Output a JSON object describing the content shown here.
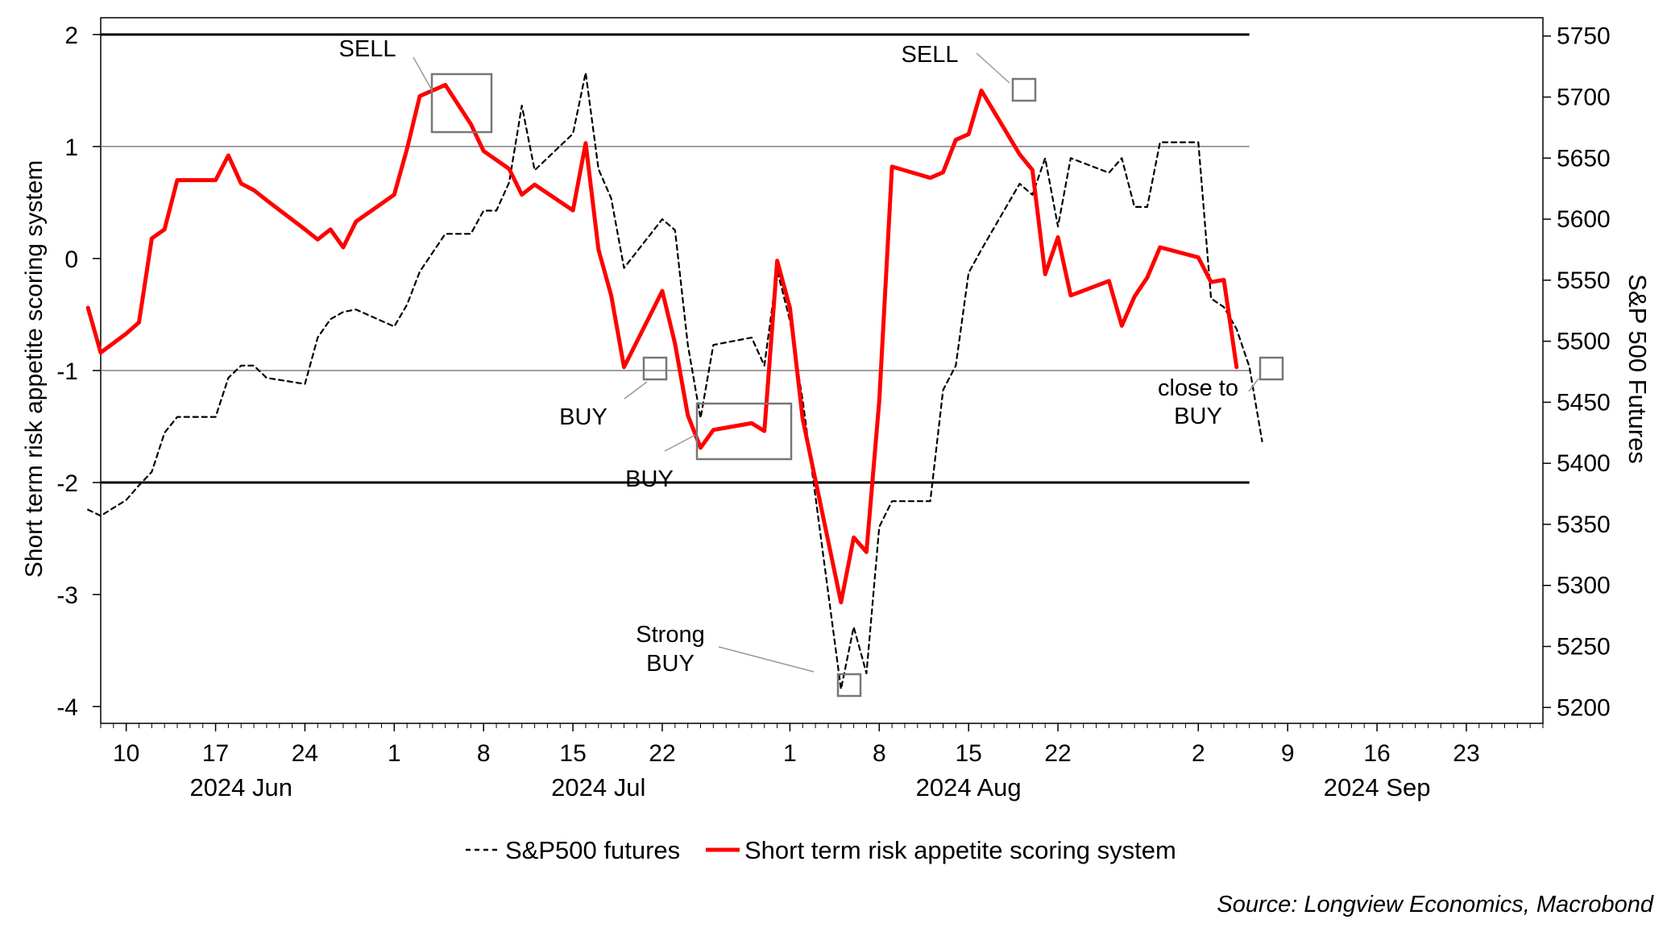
{
  "chart_data": {
    "type": "line",
    "title": "",
    "ylabel_left": "Short term risk appetite scoring system",
    "ylabel_right": "S&P 500 Futures",
    "ylim_left": [
      -4.15,
      2.15
    ],
    "ylim_right": [
      5187,
      5765
    ],
    "yticks_left": [
      2,
      1,
      0,
      -1,
      -2,
      -3,
      -4
    ],
    "yticks_right": [
      5750,
      5700,
      5650,
      5600,
      5550,
      5500,
      5450,
      5400,
      5350,
      5300,
      5250,
      5200
    ],
    "xlim": [
      "2024-06-08",
      "2024-09-29"
    ],
    "xticks": [
      {
        "date": "2024-06-10",
        "label": "10"
      },
      {
        "date": "2024-06-17",
        "label": "17"
      },
      {
        "date": "2024-06-24",
        "label": "24"
      },
      {
        "date": "2024-07-01",
        "label": "1"
      },
      {
        "date": "2024-07-08",
        "label": "8"
      },
      {
        "date": "2024-07-15",
        "label": "15"
      },
      {
        "date": "2024-07-22",
        "label": "22"
      },
      {
        "date": "2024-08-01",
        "label": "1"
      },
      {
        "date": "2024-08-08",
        "label": "8"
      },
      {
        "date": "2024-08-15",
        "label": "15"
      },
      {
        "date": "2024-08-22",
        "label": "22"
      },
      {
        "date": "2024-09-02",
        "label": "2"
      },
      {
        "date": "2024-09-09",
        "label": "9"
      },
      {
        "date": "2024-09-16",
        "label": "16"
      },
      {
        "date": "2024-09-23",
        "label": "23"
      }
    ],
    "month_labels": [
      {
        "date": "2024-06-19",
        "label": "2024 Jun"
      },
      {
        "date": "2024-07-17",
        "label": "2024 Jul"
      },
      {
        "date": "2024-08-15",
        "label": "2024 Aug"
      },
      {
        "date": "2024-09-16",
        "label": "2024 Sep"
      }
    ],
    "reference_lines": [
      {
        "y": 2,
        "style": "thick"
      },
      {
        "y": 1,
        "style": "thin"
      },
      {
        "y": -1,
        "style": "thin"
      },
      {
        "y": -2,
        "style": "thick"
      }
    ],
    "series": [
      {
        "name": "S&P500 futures",
        "axis": "right",
        "color": "#000000",
        "style": "dashed",
        "points": [
          [
            "2024-06-07",
            5362
          ],
          [
            "2024-06-08",
            5357
          ],
          [
            "2024-06-10",
            5370
          ],
          [
            "2024-06-11",
            5382
          ],
          [
            "2024-06-12",
            5393
          ],
          [
            "2024-06-13",
            5425
          ],
          [
            "2024-06-14",
            5438
          ],
          [
            "2024-06-17",
            5438
          ],
          [
            "2024-06-18",
            5470
          ],
          [
            "2024-06-19",
            5480
          ],
          [
            "2024-06-20",
            5480
          ],
          [
            "2024-06-21",
            5470
          ],
          [
            "2024-06-24",
            5465
          ],
          [
            "2024-06-25",
            5503
          ],
          [
            "2024-06-26",
            5518
          ],
          [
            "2024-06-27",
            5524
          ],
          [
            "2024-06-28",
            5526
          ],
          [
            "2024-07-01",
            5512
          ],
          [
            "2024-07-02",
            5530
          ],
          [
            "2024-07-03",
            5557
          ],
          [
            "2024-07-05",
            5588
          ],
          [
            "2024-07-07",
            5588
          ],
          [
            "2024-07-08",
            5607
          ],
          [
            "2024-07-09",
            5607
          ],
          [
            "2024-07-10",
            5630
          ],
          [
            "2024-07-11",
            5693
          ],
          [
            "2024-07-12",
            5640
          ],
          [
            "2024-07-15",
            5670
          ],
          [
            "2024-07-16",
            5720
          ],
          [
            "2024-07-17",
            5641
          ],
          [
            "2024-07-18",
            5617
          ],
          [
            "2024-07-19",
            5560
          ],
          [
            "2024-07-22",
            5600
          ],
          [
            "2024-07-23",
            5591
          ],
          [
            "2024-07-24",
            5497
          ],
          [
            "2024-07-25",
            5437
          ],
          [
            "2024-07-26",
            5497
          ],
          [
            "2024-07-29",
            5503
          ],
          [
            "2024-07-30",
            5480
          ],
          [
            "2024-07-31",
            5558
          ],
          [
            "2024-08-01",
            5517
          ],
          [
            "2024-08-02",
            5452
          ],
          [
            "2024-08-05",
            5215
          ],
          [
            "2024-08-06",
            5266
          ],
          [
            "2024-08-07",
            5228
          ],
          [
            "2024-08-08",
            5348
          ],
          [
            "2024-08-09",
            5369
          ],
          [
            "2024-08-12",
            5369
          ],
          [
            "2024-08-13",
            5460
          ],
          [
            "2024-08-14",
            5480
          ],
          [
            "2024-08-15",
            5556
          ],
          [
            "2024-08-16",
            5575
          ],
          [
            "2024-08-19",
            5629
          ],
          [
            "2024-08-20",
            5620
          ],
          [
            "2024-08-21",
            5650
          ],
          [
            "2024-08-22",
            5594
          ],
          [
            "2024-08-23",
            5650
          ],
          [
            "2024-08-26",
            5638
          ],
          [
            "2024-08-27",
            5650
          ],
          [
            "2024-08-28",
            5610
          ],
          [
            "2024-08-29",
            5610
          ],
          [
            "2024-08-30",
            5663
          ],
          [
            "2024-09-02",
            5663
          ],
          [
            "2024-09-03",
            5535
          ],
          [
            "2024-09-04",
            5528
          ],
          [
            "2024-09-05",
            5510
          ],
          [
            "2024-09-06",
            5479
          ],
          [
            "2024-09-07",
            5418
          ]
        ]
      },
      {
        "name": "Short term risk appetite scoring system",
        "axis": "left",
        "color": "#ff0000",
        "style": "solid",
        "points": [
          [
            "2024-06-07",
            -0.44
          ],
          [
            "2024-06-08",
            -0.84
          ],
          [
            "2024-06-10",
            -0.67
          ],
          [
            "2024-06-11",
            -0.57
          ],
          [
            "2024-06-12",
            0.18
          ],
          [
            "2024-06-13",
            0.26
          ],
          [
            "2024-06-14",
            0.7
          ],
          [
            "2024-06-17",
            0.7
          ],
          [
            "2024-06-18",
            0.92
          ],
          [
            "2024-06-19",
            0.67
          ],
          [
            "2024-06-20",
            0.61
          ],
          [
            "2024-06-21",
            0.52
          ],
          [
            "2024-06-24",
            0.26
          ],
          [
            "2024-06-25",
            0.17
          ],
          [
            "2024-06-26",
            0.26
          ],
          [
            "2024-06-27",
            0.1
          ],
          [
            "2024-06-28",
            0.33
          ],
          [
            "2024-07-01",
            0.57
          ],
          [
            "2024-07-02",
            0.98
          ],
          [
            "2024-07-03",
            1.45
          ],
          [
            "2024-07-05",
            1.55
          ],
          [
            "2024-07-07",
            1.2
          ],
          [
            "2024-07-08",
            0.96
          ],
          [
            "2024-07-09",
            0.88
          ],
          [
            "2024-07-10",
            0.8
          ],
          [
            "2024-07-11",
            0.57
          ],
          [
            "2024-07-12",
            0.66
          ],
          [
            "2024-07-15",
            0.43
          ],
          [
            "2024-07-16",
            1.03
          ],
          [
            "2024-07-17",
            0.08
          ],
          [
            "2024-07-18",
            -0.33
          ],
          [
            "2024-07-19",
            -0.97
          ],
          [
            "2024-07-22",
            -0.29
          ],
          [
            "2024-07-23",
            -0.76
          ],
          [
            "2024-07-24",
            -1.4
          ],
          [
            "2024-07-25",
            -1.69
          ],
          [
            "2024-07-26",
            -1.53
          ],
          [
            "2024-07-29",
            -1.47
          ],
          [
            "2024-07-30",
            -1.54
          ],
          [
            "2024-07-31",
            -0.02
          ],
          [
            "2024-08-01",
            -0.44
          ],
          [
            "2024-08-02",
            -1.43
          ],
          [
            "2024-08-05",
            -3.07
          ],
          [
            "2024-08-06",
            -2.49
          ],
          [
            "2024-08-07",
            -2.62
          ],
          [
            "2024-08-08",
            -1.27
          ],
          [
            "2024-08-09",
            0.82
          ],
          [
            "2024-08-12",
            0.72
          ],
          [
            "2024-08-13",
            0.77
          ],
          [
            "2024-08-14",
            1.06
          ],
          [
            "2024-08-15",
            1.11
          ],
          [
            "2024-08-16",
            1.5
          ],
          [
            "2024-08-19",
            0.93
          ],
          [
            "2024-08-20",
            0.79
          ],
          [
            "2024-08-21",
            -0.14
          ],
          [
            "2024-08-22",
            0.19
          ],
          [
            "2024-08-23",
            -0.33
          ],
          [
            "2024-08-26",
            -0.2
          ],
          [
            "2024-08-27",
            -0.6
          ],
          [
            "2024-08-28",
            -0.34
          ],
          [
            "2024-08-29",
            -0.17
          ],
          [
            "2024-08-30",
            0.1
          ],
          [
            "2024-09-02",
            0.01
          ],
          [
            "2024-09-03",
            -0.21
          ],
          [
            "2024-09-04",
            -0.19
          ],
          [
            "2024-09-05",
            -0.97
          ]
        ]
      }
    ],
    "annotations": [
      {
        "text": "SELL"
      },
      {
        "text": "SELL"
      },
      {
        "text": "BUY"
      },
      {
        "text": "BUY"
      },
      {
        "text": "Strong\nBUY"
      },
      {
        "text": "close to\nBUY"
      }
    ],
    "legend": [
      {
        "label": "S&P500 futures",
        "style": "dashed",
        "color": "#000000"
      },
      {
        "label": "Short term risk appetite scoring system",
        "style": "solid",
        "color": "#ff0000"
      }
    ],
    "legend_position": "bottom-center",
    "source": "Source: Longview Economics, Macrobond"
  }
}
